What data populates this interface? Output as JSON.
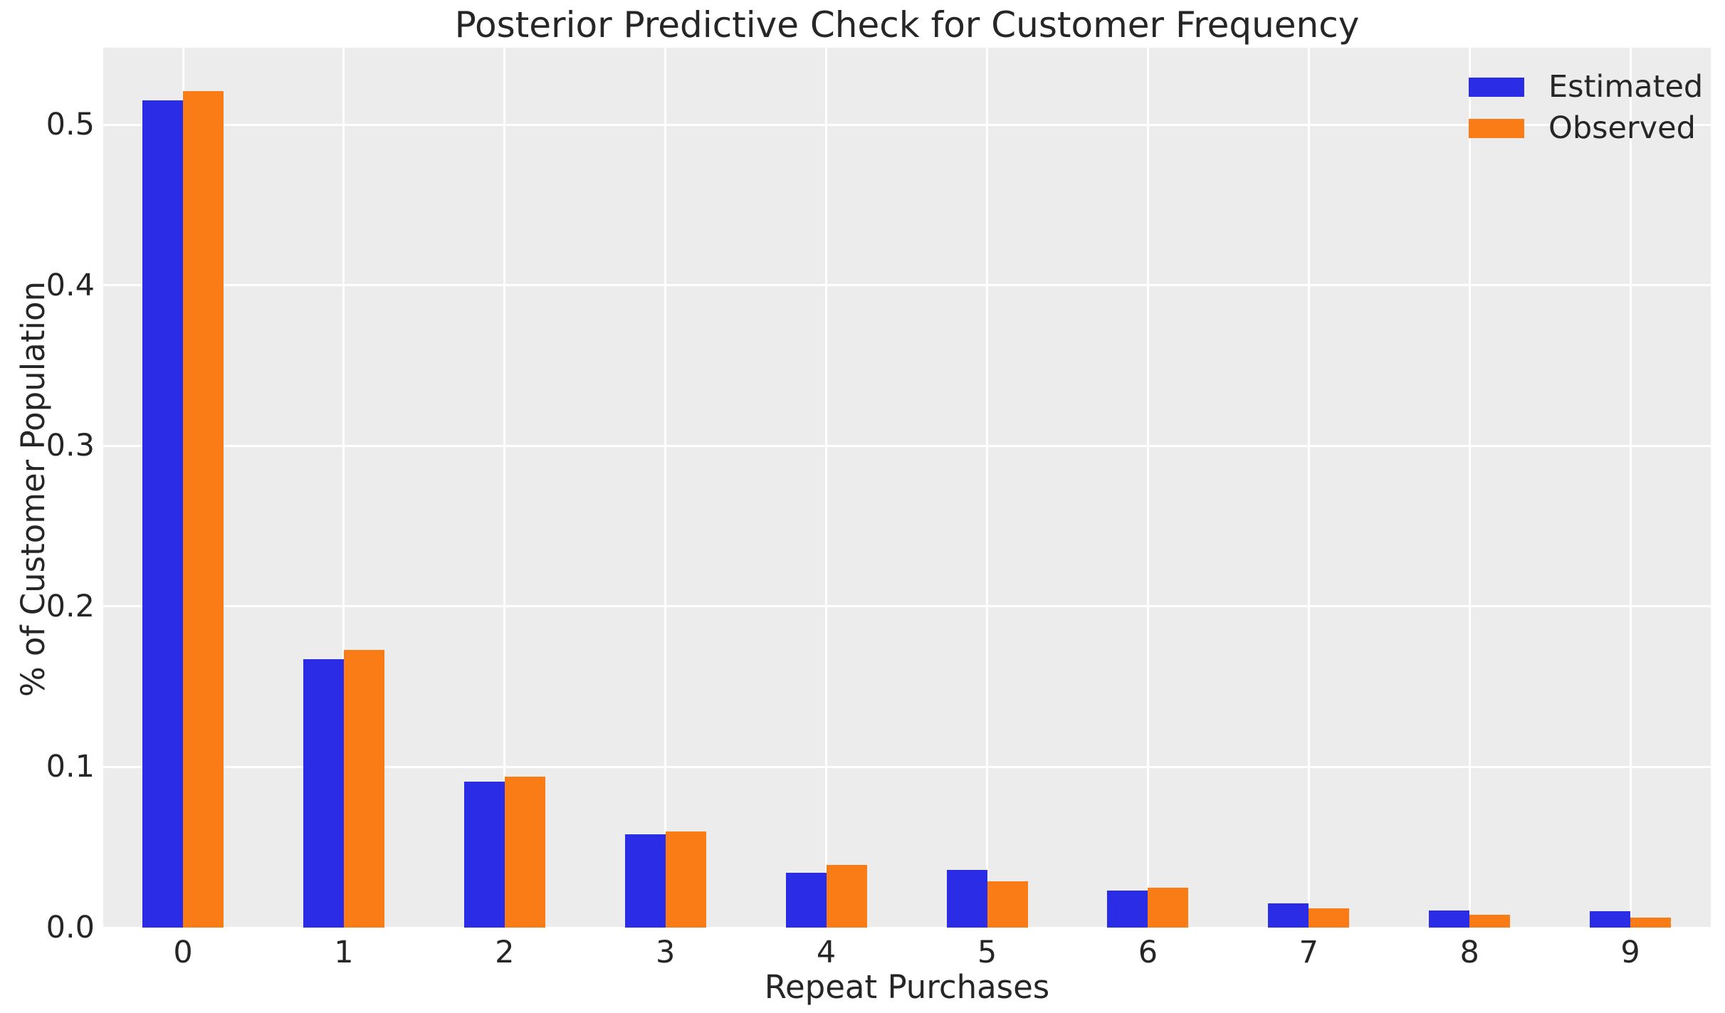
{
  "chart_data": {
    "type": "bar",
    "title": "Posterior Predictive Check for Customer Frequency",
    "xlabel": "Repeat Purchases",
    "ylabel": "% of Customer Population",
    "categories": [
      "0",
      "1",
      "2",
      "3",
      "4",
      "5",
      "6",
      "7",
      "8",
      "9"
    ],
    "series": [
      {
        "name": "Estimated",
        "color": "#2b2de6",
        "values": [
          0.515,
          0.167,
          0.091,
          0.058,
          0.034,
          0.036,
          0.023,
          0.015,
          0.0105,
          0.01
        ]
      },
      {
        "name": "Observed",
        "color": "#f97c16",
        "values": [
          0.521,
          0.173,
          0.094,
          0.06,
          0.039,
          0.029,
          0.025,
          0.012,
          0.008,
          0.006
        ]
      }
    ],
    "ylim": [
      0,
      0.548
    ],
    "yticks": [
      0.0,
      0.1,
      0.2,
      0.3,
      0.4,
      0.5
    ],
    "ytick_labels": [
      "0.0",
      "0.1",
      "0.2",
      "0.3",
      "0.4",
      "0.5"
    ],
    "grid": true,
    "legend_position": "upper right",
    "plot_bg_color": "#ececec",
    "grid_color": "#ffffff",
    "text_color": "#262626"
  }
}
